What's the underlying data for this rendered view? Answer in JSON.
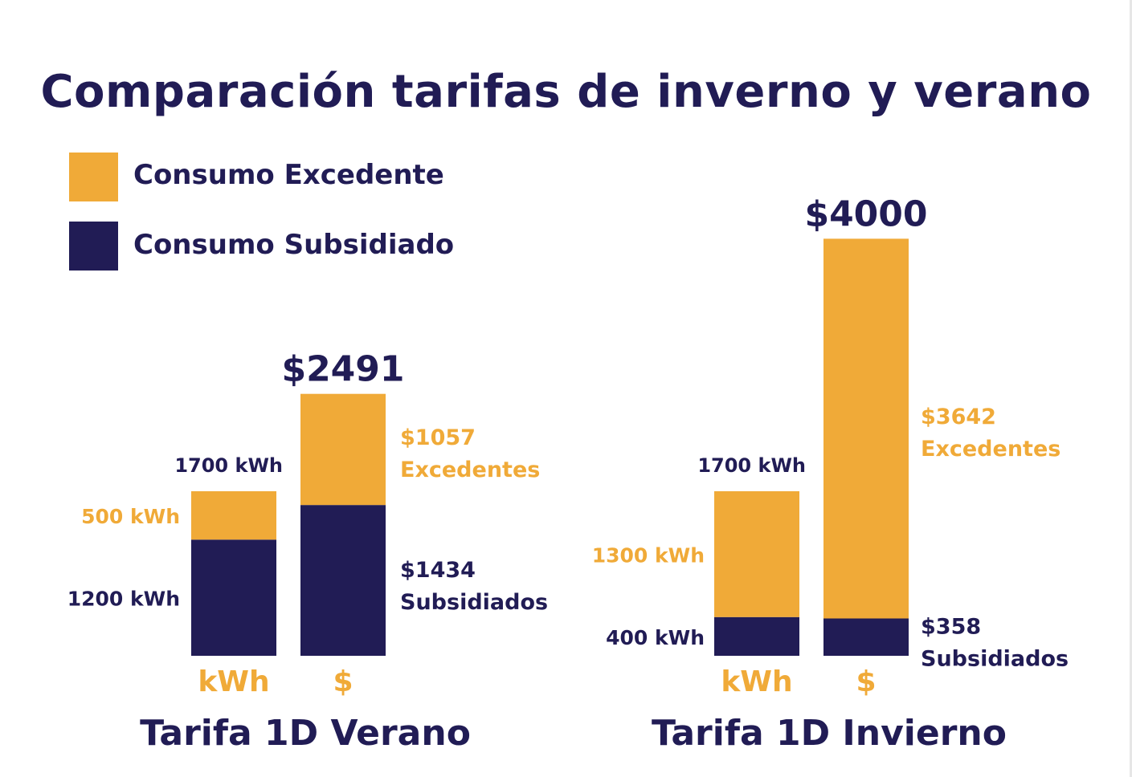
{
  "title": "Comparación tarifas de inverno y verano",
  "colors": {
    "excedente": "#f0aa38",
    "subsidiado": "#211c55"
  },
  "legend": [
    {
      "label": "Consumo Excedente",
      "color": "#f0aa38"
    },
    {
      "label": "Consumo Subsidiado",
      "color": "#211c55"
    }
  ],
  "chart_data": [
    {
      "type": "bar",
      "stacked": true,
      "title": "Tarifa 1D Verano",
      "categories": [
        "kWh",
        "$"
      ],
      "series": [
        {
          "name": "Consumo Subsidiado",
          "values": [
            1200,
            1434
          ]
        },
        {
          "name": "Consumo Excedente",
          "values": [
            500,
            1057
          ]
        }
      ],
      "totals": [
        "1700 kWh",
        "$2491"
      ],
      "segment_labels": {
        "kwh_excedente": "500 kWh",
        "kwh_subsidiado": "1200 kWh",
        "money_excedente": [
          "$1057",
          "Excedentes"
        ],
        "money_subsidiado": [
          "$1434",
          "Subsidiados"
        ]
      }
    },
    {
      "type": "bar",
      "stacked": true,
      "title": "Tarifa 1D Invierno",
      "categories": [
        "kWh",
        "$"
      ],
      "series": [
        {
          "name": "Consumo Subsidiado",
          "values": [
            400,
            358
          ]
        },
        {
          "name": "Consumo Excedente",
          "values": [
            1300,
            3642
          ]
        }
      ],
      "totals": [
        "1700 kWh",
        "$4000"
      ],
      "segment_labels": {
        "kwh_excedente": "1300 kWh",
        "kwh_subsidiado": "400 kWh",
        "money_excedente": [
          "$3642",
          "Excedentes"
        ],
        "money_subsidiado": [
          "$358",
          "Subsidiados"
        ]
      }
    }
  ]
}
